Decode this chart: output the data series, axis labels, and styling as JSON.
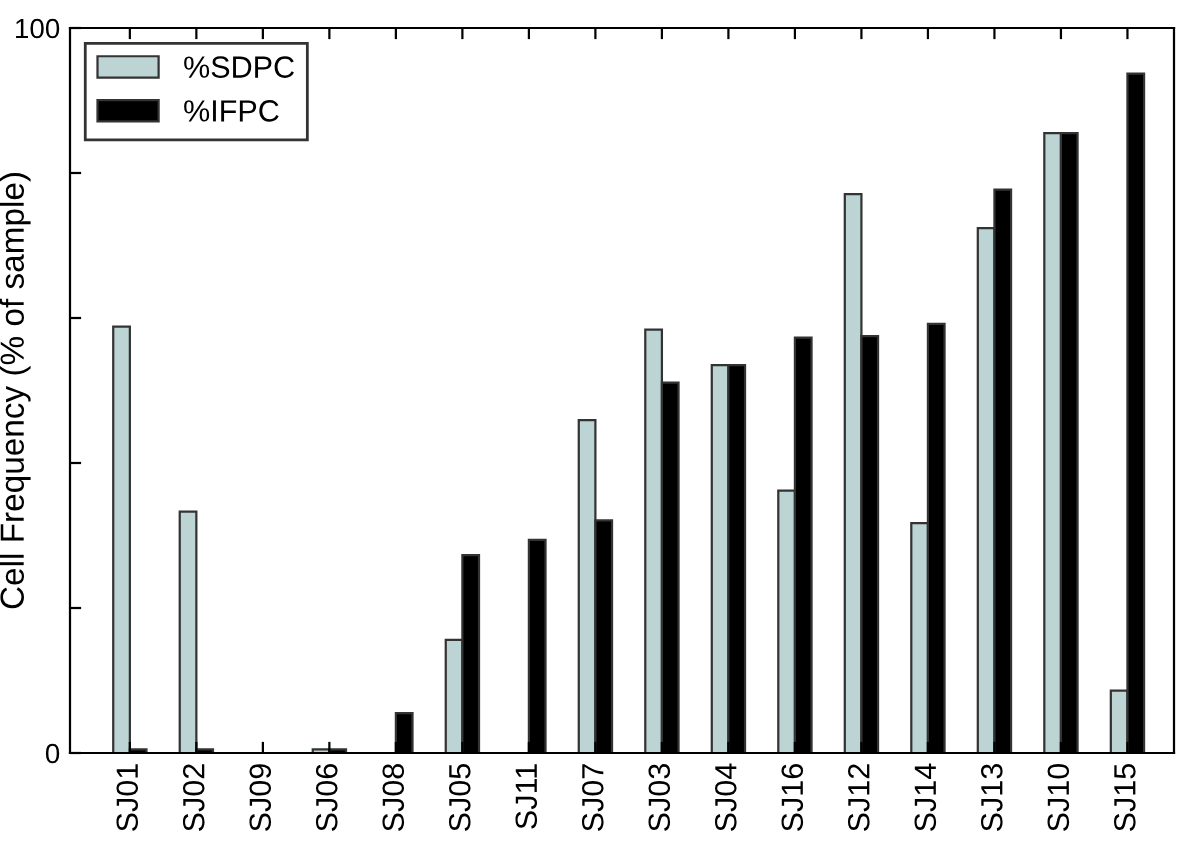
{
  "chart_data": {
    "type": "bar",
    "ylabel": "Cell Frequency (% of sample)",
    "categories": [
      "SJ01",
      "SJ02",
      "SJ09",
      "SJ06",
      "SJ08",
      "SJ05",
      "SJ11",
      "SJ07",
      "SJ03",
      "SJ04",
      "SJ16",
      "SJ12",
      "SJ14",
      "SJ13",
      "SJ10",
      "SJ15"
    ],
    "series": [
      {
        "name": "%SDPC",
        "color": "#bcd4d4",
        "values": [
          58.8,
          33.3,
          0,
          0.5,
          0,
          15.6,
          0,
          45.9,
          58.4,
          53.5,
          36.2,
          77.1,
          31.7,
          72.4,
          85.5,
          8.6
        ]
      },
      {
        "name": "%IFPC",
        "color": "#000000",
        "values": [
          0.5,
          0.5,
          0,
          0.5,
          5.5,
          27.3,
          29.4,
          32.1,
          51.1,
          53.5,
          57.3,
          57.5,
          59.2,
          77.7,
          85.5,
          93.7
        ]
      }
    ],
    "ylim": [
      0,
      100
    ],
    "yticks": [
      0,
      {
        "value": 20,
        "label": null
      },
      {
        "value": 40,
        "label": null
      },
      {
        "value": 60,
        "label": null
      },
      {
        "value": 80,
        "label": null
      },
      100
    ],
    "legend": "top left",
    "grid": false
  }
}
